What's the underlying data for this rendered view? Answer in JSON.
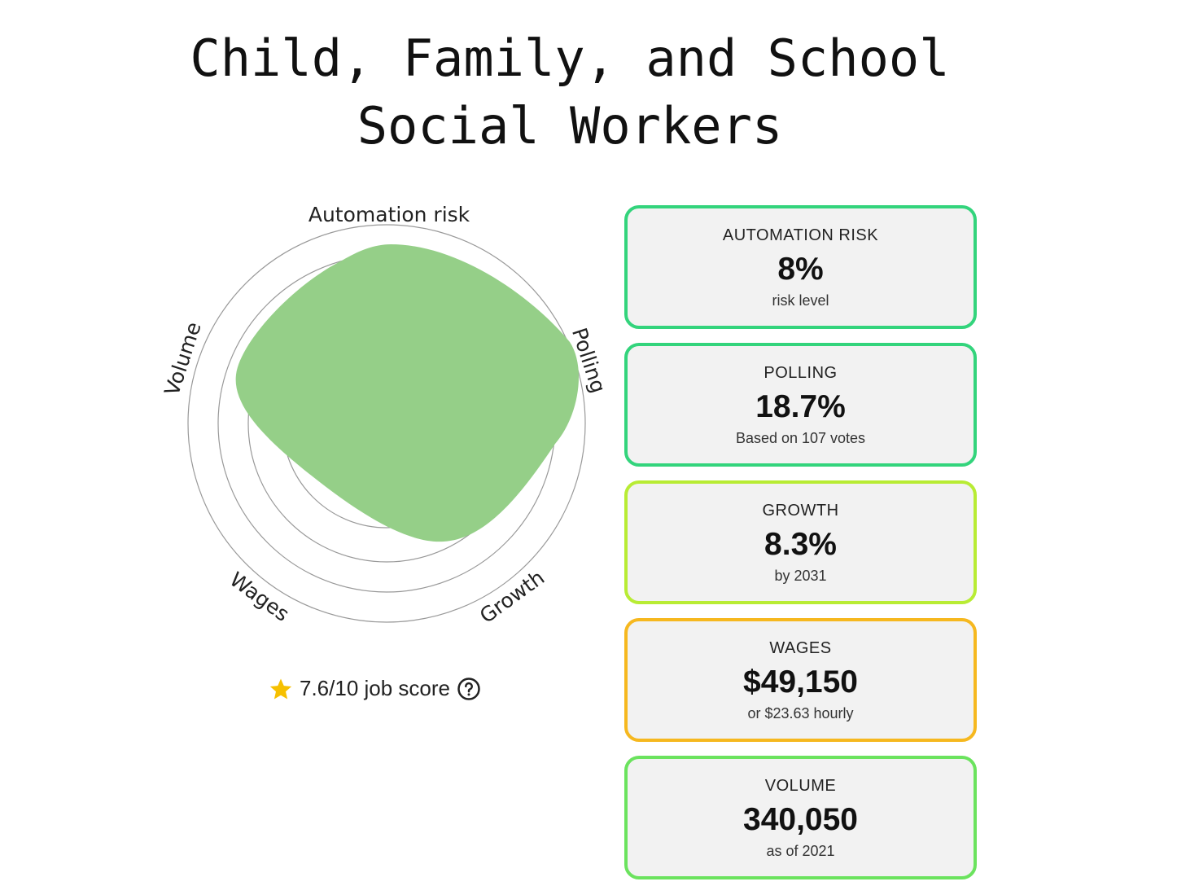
{
  "header": {
    "title": "Child, Family, and School Social Workers"
  },
  "radar": {
    "axes": [
      "Automation risk",
      "Polling",
      "Growth",
      "Wages",
      "Volume"
    ]
  },
  "score": {
    "text": "7.6/10 job score"
  },
  "cards": [
    {
      "label": "AUTOMATION RISK",
      "value": "8%",
      "note": "risk level",
      "color": "#33d47c"
    },
    {
      "label": "POLLING",
      "value": "18.7%",
      "note": "Based on 107 votes",
      "color": "#33d47c"
    },
    {
      "label": "GROWTH",
      "value": "8.3%",
      "note": "by 2031",
      "color": "#b8ec34"
    },
    {
      "label": "WAGES",
      "value": "$49,150",
      "note": "or $23.63 hourly",
      "color": "#f6b81f"
    },
    {
      "label": "VOLUME",
      "value": "340,050",
      "note": "as of 2021",
      "color": "#6be35e"
    }
  ]
}
